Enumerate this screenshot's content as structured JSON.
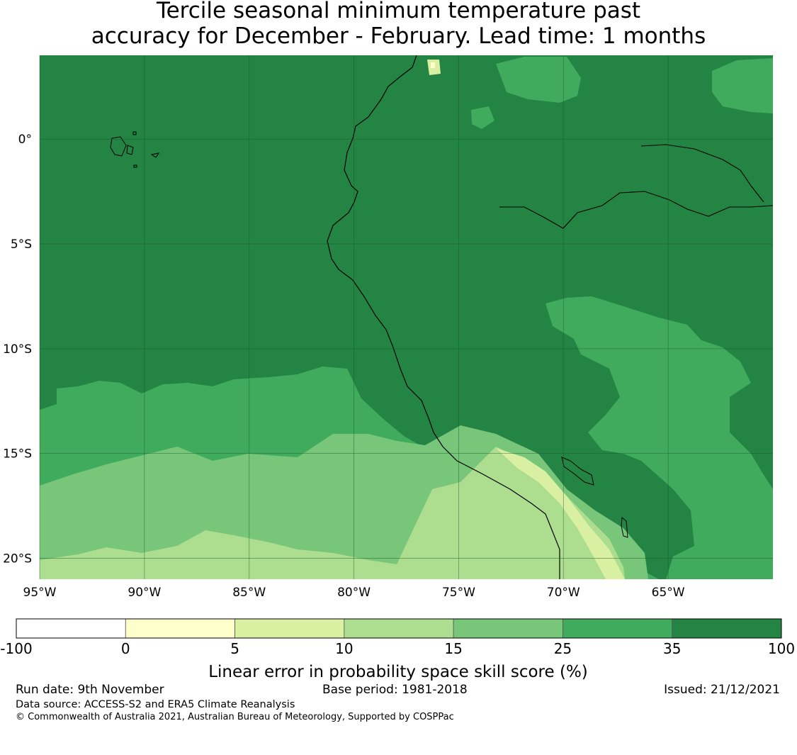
{
  "title": {
    "line1": "Tercile seasonal minimum temperature past",
    "line2": "accuracy for December - February. Lead time: 1 months"
  },
  "map": {
    "lon_labels": [
      "95°W",
      "90°W",
      "85°W",
      "80°W",
      "75°W",
      "70°W",
      "65°W"
    ],
    "lon_values": [
      -95,
      -90,
      -85,
      -80,
      -75,
      -70,
      -65
    ],
    "lat_labels": [
      "0°",
      "5°S",
      "10°S",
      "15°S",
      "20°S"
    ],
    "lat_values": [
      0,
      -5,
      -10,
      -15,
      -20
    ],
    "lon_range": [
      -95,
      -60
    ],
    "lat_range": [
      -21,
      4
    ],
    "grid": true
  },
  "colorbar": {
    "ticks": [
      "-100",
      "0",
      "5",
      "10",
      "15",
      "25",
      "35",
      "100"
    ],
    "colors": [
      "#ffffff",
      "#ffffcc",
      "#d9f0a3",
      "#addd8e",
      "#78c679",
      "#41ab5d",
      "#238443"
    ],
    "label": "Linear error in probability space skill score (%)"
  },
  "footer": {
    "run_date": "Run date: 9th November",
    "base_period": "Base period: 1981-2018",
    "issued": "Issued: 21/12/2021",
    "data_source": "Data source: ACCESS-S2 and ERA5 Climate Reanalysis",
    "copyright": "© Commonwealth of Australia 2021, Australian Bureau of Meteorology, Supported by COSPPac"
  }
}
